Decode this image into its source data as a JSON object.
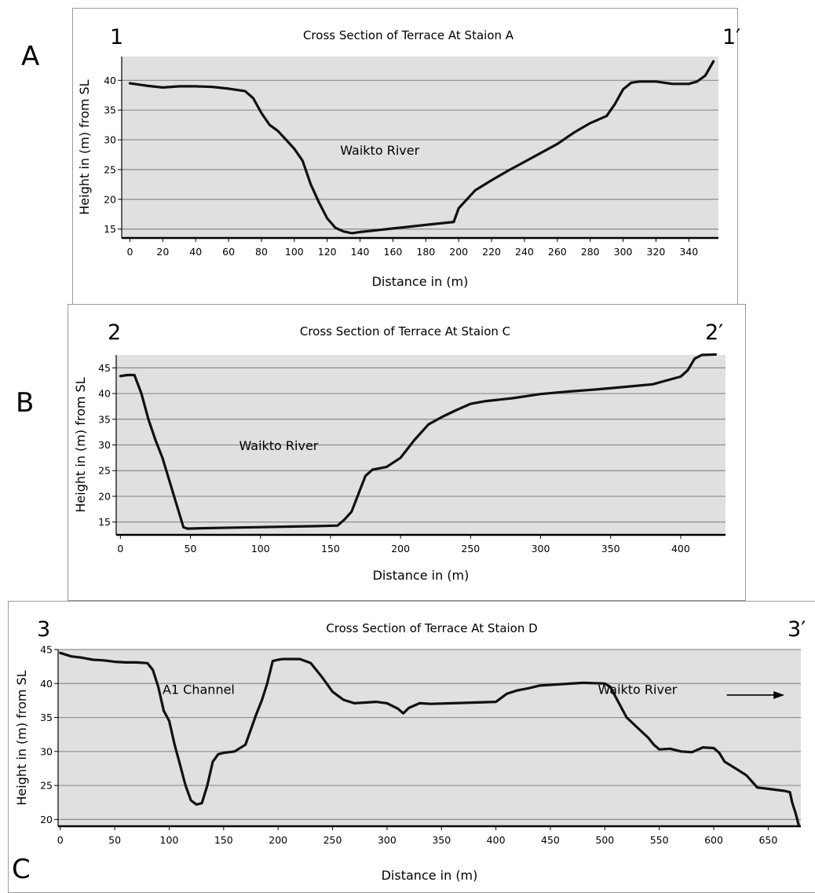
{
  "panel_letters": [
    "A",
    "B",
    "C"
  ],
  "colors": {
    "plot_background": "#e0e0e0",
    "gridline": "#8c8c8c",
    "profile_line": "#111111"
  },
  "chart_data": [
    {
      "type": "line",
      "title": "Cross Section of Terrace At Staion A",
      "xlabel": "Distance in (m)",
      "ylabel": "Height in (m) from SL",
      "start_marker": "1",
      "end_marker": "1′",
      "xlim": [
        -5,
        358
      ],
      "ylim": [
        13.5,
        44
      ],
      "x_ticks": [
        0,
        20,
        40,
        60,
        80,
        100,
        120,
        140,
        160,
        180,
        200,
        220,
        240,
        260,
        280,
        300,
        320,
        340
      ],
      "y_ticks": [
        15,
        20,
        25,
        30,
        35,
        40
      ],
      "grid": "horizontal",
      "annotations": [
        {
          "text": "Waikto River",
          "x": 152,
          "y": 27.5
        }
      ],
      "series": [
        {
          "x": [
            0,
            5,
            10,
            20,
            30,
            40,
            50,
            60,
            70,
            75,
            80,
            85,
            90,
            95,
            100,
            105,
            110,
            115,
            120,
            125,
            130,
            135,
            140,
            150,
            160,
            170,
            180,
            190,
            197,
            200,
            205,
            210,
            220,
            230,
            240,
            250,
            260,
            270,
            280,
            290,
            295,
            300,
            305,
            310,
            320,
            330,
            340,
            345,
            350,
            355
          ],
          "y": [
            39.5,
            39.3,
            39.1,
            38.8,
            39.0,
            39.0,
            38.9,
            38.6,
            38.2,
            37.0,
            34.5,
            32.5,
            31.5,
            30.0,
            28.5,
            26.5,
            22.5,
            19.5,
            16.8,
            15.2,
            14.6,
            14.3,
            14.5,
            14.8,
            15.1,
            15.4,
            15.7,
            16.0,
            16.2,
            18.5,
            20.0,
            21.5,
            23.2,
            24.8,
            26.3,
            27.8,
            29.3,
            31.2,
            32.8,
            34.0,
            36.0,
            38.5,
            39.6,
            39.8,
            39.8,
            39.4,
            39.4,
            39.8,
            40.8,
            43.2
          ]
        }
      ]
    },
    {
      "type": "line",
      "title": "Cross Section of Terrace At Staion C",
      "xlabel": "Distance in (m)",
      "ylabel": "Height in (m) from SL",
      "start_marker": "2",
      "end_marker": "2′",
      "xlim": [
        -3,
        432
      ],
      "ylim": [
        12.5,
        47.5
      ],
      "x_ticks": [
        0,
        50,
        100,
        150,
        200,
        250,
        300,
        350,
        400
      ],
      "y_ticks": [
        15,
        20,
        25,
        30,
        35,
        40,
        45
      ],
      "grid": "horizontal",
      "annotations": [
        {
          "text": "Waikto River",
          "x": 113,
          "y": 29
        }
      ],
      "series": [
        {
          "x": [
            0,
            5,
            10,
            15,
            20,
            25,
            30,
            35,
            40,
            45,
            48,
            60,
            80,
            100,
            120,
            140,
            155,
            160,
            165,
            170,
            175,
            180,
            190,
            200,
            210,
            220,
            230,
            240,
            250,
            260,
            280,
            300,
            320,
            340,
            360,
            380,
            400,
            405,
            410,
            415,
            425
          ],
          "y": [
            43.4,
            43.6,
            43.6,
            40.0,
            35.0,
            31.0,
            27.5,
            23.0,
            18.5,
            14.0,
            13.7,
            13.8,
            13.9,
            14.0,
            14.1,
            14.2,
            14.3,
            15.5,
            17.0,
            20.5,
            24.0,
            25.2,
            25.7,
            27.5,
            31.0,
            34.0,
            35.5,
            36.8,
            38.0,
            38.5,
            39.1,
            39.9,
            40.4,
            40.8,
            41.3,
            41.8,
            43.3,
            44.5,
            46.8,
            47.5,
            47.6
          ]
        }
      ]
    },
    {
      "type": "line",
      "title": "Cross Section of Terrace At Staion D",
      "xlabel": "Distance in (m)",
      "ylabel": "Height in (m) from SL",
      "start_marker": "3",
      "end_marker": "3′",
      "xlim": [
        -2,
        680
      ],
      "ylim": [
        19,
        45
      ],
      "x_ticks": [
        0,
        50,
        100,
        150,
        200,
        250,
        300,
        350,
        400,
        450,
        500,
        550,
        600,
        650
      ],
      "y_ticks": [
        20,
        25,
        30,
        35,
        40,
        45
      ],
      "grid": "horizontal",
      "annotations": [
        {
          "text": "A1 Channel",
          "x": 127,
          "y": 38.5
        },
        {
          "text": "Waikto River",
          "x": 530,
          "y": 38.5
        }
      ],
      "arrow": {
        "x_start": 612,
        "x_end": 665,
        "y": 38.3
      },
      "series": [
        {
          "x": [
            0,
            10,
            20,
            30,
            40,
            50,
            60,
            70,
            80,
            85,
            90,
            95,
            100,
            105,
            110,
            115,
            120,
            125,
            130,
            135,
            140,
            145,
            150,
            160,
            170,
            180,
            185,
            190,
            195,
            200,
            205,
            210,
            220,
            230,
            240,
            250,
            260,
            270,
            280,
            290,
            300,
            310,
            315,
            320,
            330,
            340,
            360,
            380,
            400,
            410,
            420,
            430,
            440,
            460,
            480,
            500,
            505,
            510,
            520,
            530,
            540,
            545,
            550,
            560,
            570,
            580,
            590,
            600,
            605,
            610,
            620,
            630,
            640,
            650,
            660,
            665,
            670,
            672,
            675,
            678
          ],
          "y": [
            44.5,
            44.0,
            43.8,
            43.5,
            43.4,
            43.2,
            43.1,
            43.1,
            43.0,
            42.0,
            39.5,
            36.0,
            34.5,
            31.0,
            28.0,
            25.0,
            22.8,
            22.2,
            22.4,
            25.0,
            28.5,
            29.6,
            29.8,
            30.0,
            31.0,
            35.5,
            37.5,
            40.0,
            43.3,
            43.5,
            43.6,
            43.6,
            43.6,
            43.0,
            41.0,
            38.8,
            37.6,
            37.1,
            37.2,
            37.3,
            37.1,
            36.3,
            35.6,
            36.4,
            37.1,
            37.0,
            37.1,
            37.2,
            37.3,
            38.5,
            39.0,
            39.3,
            39.7,
            39.9,
            40.1,
            40.0,
            39.5,
            38.0,
            35.0,
            33.5,
            32.0,
            31.0,
            30.3,
            30.4,
            30.0,
            29.9,
            30.6,
            30.5,
            29.8,
            28.5,
            27.5,
            26.5,
            24.7,
            24.5,
            24.3,
            24.2,
            24.0,
            22.5,
            21.0,
            19.2
          ]
        }
      ]
    }
  ]
}
